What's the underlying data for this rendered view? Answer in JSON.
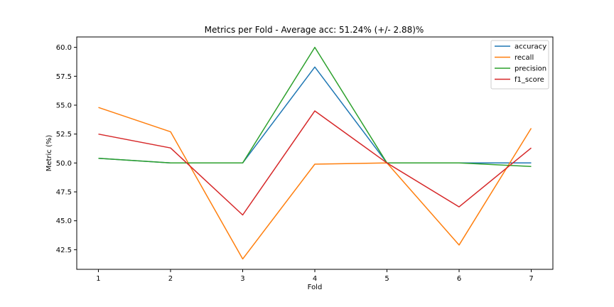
{
  "chart_data": {
    "type": "line",
    "title": "Metrics per Fold - Average acc: 51.24% (+/- 2.88)%",
    "xlabel": "Fold",
    "ylabel": "Metric (%)",
    "x": [
      1,
      2,
      3,
      4,
      5,
      6,
      7
    ],
    "x_ticks": [
      "1",
      "2",
      "3",
      "4",
      "5",
      "6",
      "7"
    ],
    "y_ticks": [
      "42.5",
      "45.0",
      "47.5",
      "50.0",
      "52.5",
      "55.0",
      "57.5",
      "60.0"
    ],
    "y_tick_values": [
      42.5,
      45.0,
      47.5,
      50.0,
      52.5,
      55.0,
      57.5,
      60.0
    ],
    "xlim": [
      0.7,
      7.3
    ],
    "ylim": [
      40.8,
      60.9
    ],
    "grid": false,
    "legend_position": "top-right",
    "series": [
      {
        "name": "accuracy",
        "color": "#1f77b4",
        "values": [
          50.4,
          50.0,
          50.0,
          58.3,
          50.0,
          50.0,
          50.0
        ]
      },
      {
        "name": "recall",
        "color": "#ff7f0e",
        "values": [
          54.8,
          52.7,
          41.7,
          49.9,
          50.0,
          42.9,
          53.0
        ]
      },
      {
        "name": "precision",
        "color": "#2ca02c",
        "values": [
          50.4,
          50.0,
          50.0,
          60.0,
          50.0,
          50.0,
          49.7
        ]
      },
      {
        "name": "f1_score",
        "color": "#d62728",
        "values": [
          52.5,
          51.3,
          45.5,
          54.5,
          50.0,
          46.2,
          51.3
        ]
      }
    ]
  }
}
